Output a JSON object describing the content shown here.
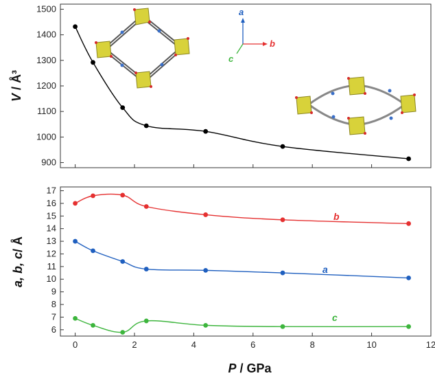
{
  "colors": {
    "a": "#1f5fbf",
    "b": "#e53030",
    "c": "#3db53d",
    "V": "#000000"
  },
  "axis_glyphs": {
    "a": "a",
    "b": "b",
    "c": "c"
  },
  "chart_data": [
    {
      "type": "line",
      "title": "",
      "ylabel_italic": "V",
      "ylabel_rest": " / Å³",
      "xlabel": "",
      "xlim": [
        -0.5,
        12
      ],
      "ylim": [
        880,
        1520
      ],
      "grid": false,
      "x_ticks": [],
      "y_ticks": [
        "900",
        "1000",
        "1100",
        "1200",
        "1300",
        "1400",
        "1500"
      ],
      "series": [
        {
          "key": "V",
          "x": [
            0,
            0.6,
            1.6,
            2.4,
            4.4,
            7.0,
            11.25
          ],
          "values": [
            1432,
            1292,
            1115,
            1044,
            1022,
            963,
            915
          ]
        }
      ],
      "annotations": [
        "structure image (open rhombic framework)",
        "crystal axes inset a/b/c",
        "structure image (flattened framework)"
      ]
    },
    {
      "type": "line",
      "title": "",
      "ylabel_italic": "a, b, c",
      "ylabel_rest": "/ Å",
      "xlabel_italic": "P",
      "xlabel_rest": " / GPa",
      "xlim": [
        -0.5,
        12
      ],
      "ylim": [
        5.5,
        17.3
      ],
      "grid": false,
      "x_ticks": [
        "0",
        "2",
        "4",
        "6",
        "8",
        "10",
        "12"
      ],
      "y_ticks": [
        "6",
        "7",
        "8",
        "9",
        "10",
        "11",
        "12",
        "13",
        "14",
        "15",
        "16",
        "17"
      ],
      "series": [
        {
          "key": "b",
          "label": "b",
          "x": [
            0,
            0.6,
            1.6,
            2.4,
            4.4,
            7.0,
            11.25
          ],
          "values": [
            16.0,
            16.6,
            16.65,
            15.75,
            15.1,
            14.7,
            14.4
          ]
        },
        {
          "key": "a",
          "label": "a",
          "x": [
            0,
            0.6,
            1.6,
            2.4,
            4.4,
            7.0,
            11.25
          ],
          "values": [
            13.0,
            12.25,
            11.4,
            10.8,
            10.7,
            10.5,
            10.1
          ]
        },
        {
          "key": "c",
          "label": "c",
          "x": [
            0,
            0.6,
            1.6,
            2.4,
            4.4,
            7.0,
            11.25
          ],
          "values": [
            6.9,
            6.35,
            5.8,
            6.7,
            6.35,
            6.25,
            6.25
          ]
        }
      ]
    }
  ]
}
